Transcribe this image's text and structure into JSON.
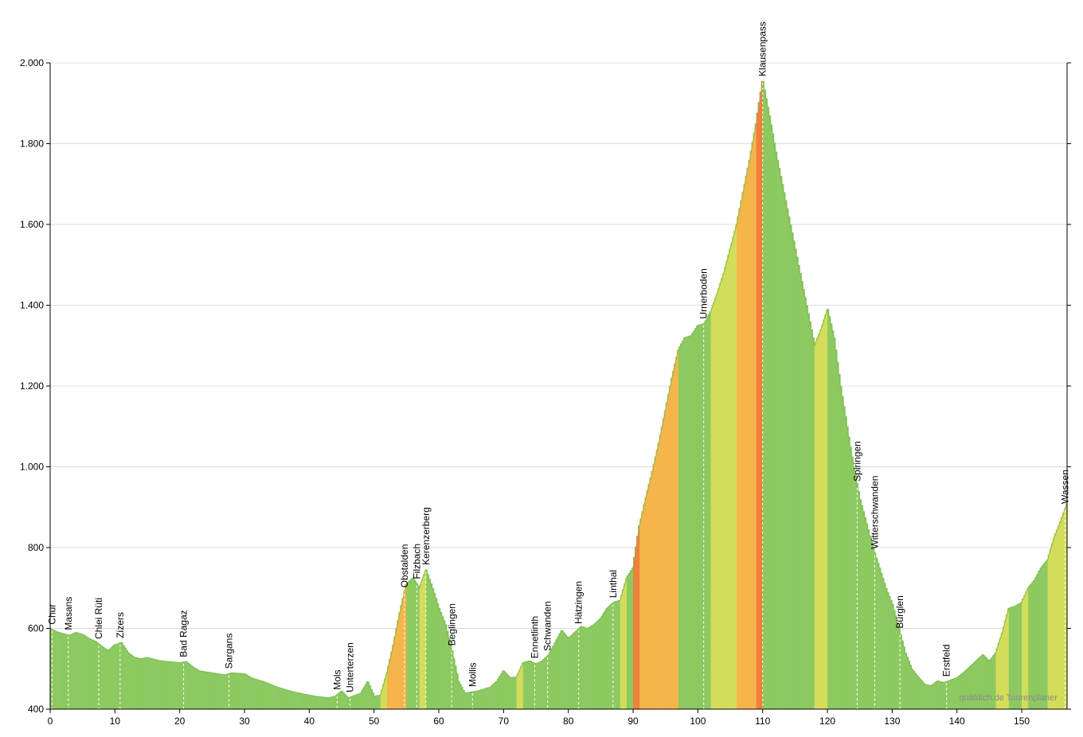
{
  "chart_data": {
    "type": "area",
    "title": "",
    "xlabel": "",
    "ylabel": "",
    "xlim": [
      0,
      157
    ],
    "ylim": [
      400,
      2000
    ],
    "x_ticks": [
      0,
      10,
      20,
      30,
      40,
      50,
      60,
      70,
      80,
      90,
      100,
      110,
      120,
      130,
      140,
      150
    ],
    "x_tick_labels": [
      "0",
      "10",
      "20",
      "30",
      "40",
      "50",
      "60",
      "70",
      "80",
      "90",
      "100",
      "110",
      "120",
      "130",
      "140",
      "150"
    ],
    "y_ticks": [
      400,
      600,
      800,
      1000,
      1200,
      1400,
      1600,
      1800,
      2000
    ],
    "y_tick_labels": [
      "400",
      "600",
      "800",
      "1.000",
      "1.200",
      "1.400",
      "1.600",
      "1.800",
      "2.000"
    ],
    "grid": true,
    "gradient_colors": {
      "flat": "#8dc961",
      "moderate": "#d3dd5a",
      "steep": "#f5b54b",
      "very_steep": "#f07f3c",
      "extreme": "#d34a2a"
    },
    "profile": [
      {
        "x": 0,
        "y": 600
      },
      {
        "x": 1,
        "y": 592
      },
      {
        "x": 2,
        "y": 587
      },
      {
        "x": 3,
        "y": 583
      },
      {
        "x": 4,
        "y": 590
      },
      {
        "x": 5,
        "y": 585
      },
      {
        "x": 6,
        "y": 575
      },
      {
        "x": 7,
        "y": 568
      },
      {
        "x": 8,
        "y": 555
      },
      {
        "x": 9,
        "y": 545
      },
      {
        "x": 10,
        "y": 560
      },
      {
        "x": 11,
        "y": 565
      },
      {
        "x": 12,
        "y": 540
      },
      {
        "x": 13,
        "y": 528
      },
      {
        "x": 14,
        "y": 525
      },
      {
        "x": 15,
        "y": 528
      },
      {
        "x": 17,
        "y": 520
      },
      {
        "x": 20,
        "y": 515
      },
      {
        "x": 21,
        "y": 518
      },
      {
        "x": 22,
        "y": 505
      },
      {
        "x": 23,
        "y": 495
      },
      {
        "x": 25,
        "y": 490
      },
      {
        "x": 27,
        "y": 485
      },
      {
        "x": 28,
        "y": 490
      },
      {
        "x": 30,
        "y": 488
      },
      {
        "x": 31,
        "y": 478
      },
      {
        "x": 33,
        "y": 468
      },
      {
        "x": 35,
        "y": 455
      },
      {
        "x": 37,
        "y": 445
      },
      {
        "x": 39,
        "y": 438
      },
      {
        "x": 41,
        "y": 432
      },
      {
        "x": 43,
        "y": 428
      },
      {
        "x": 44,
        "y": 432
      },
      {
        "x": 45,
        "y": 445
      },
      {
        "x": 46,
        "y": 428
      },
      {
        "x": 48,
        "y": 440
      },
      {
        "x": 49,
        "y": 468
      },
      {
        "x": 50,
        "y": 432
      },
      {
        "x": 51,
        "y": 435
      },
      {
        "x": 52,
        "y": 490
      },
      {
        "x": 53,
        "y": 560
      },
      {
        "x": 54,
        "y": 640
      },
      {
        "x": 55,
        "y": 710
      },
      {
        "x": 56,
        "y": 725
      },
      {
        "x": 57,
        "y": 700
      },
      {
        "x": 58,
        "y": 745
      },
      {
        "x": 59,
        "y": 700
      },
      {
        "x": 60,
        "y": 650
      },
      {
        "x": 61,
        "y": 610
      },
      {
        "x": 62,
        "y": 545
      },
      {
        "x": 63,
        "y": 470
      },
      {
        "x": 64,
        "y": 440
      },
      {
        "x": 66,
        "y": 445
      },
      {
        "x": 68,
        "y": 455
      },
      {
        "x": 69,
        "y": 470
      },
      {
        "x": 70,
        "y": 495
      },
      {
        "x": 71,
        "y": 478
      },
      {
        "x": 72,
        "y": 480
      },
      {
        "x": 73,
        "y": 515
      },
      {
        "x": 74,
        "y": 520
      },
      {
        "x": 75,
        "y": 512
      },
      {
        "x": 76,
        "y": 520
      },
      {
        "x": 77,
        "y": 535
      },
      {
        "x": 78,
        "y": 565
      },
      {
        "x": 79,
        "y": 595
      },
      {
        "x": 80,
        "y": 575
      },
      {
        "x": 81,
        "y": 590
      },
      {
        "x": 82,
        "y": 605
      },
      {
        "x": 83,
        "y": 600
      },
      {
        "x": 84,
        "y": 610
      },
      {
        "x": 85,
        "y": 625
      },
      {
        "x": 86,
        "y": 650
      },
      {
        "x": 87,
        "y": 665
      },
      {
        "x": 88,
        "y": 670
      },
      {
        "x": 89,
        "y": 725
      },
      {
        "x": 90,
        "y": 750
      },
      {
        "x": 91,
        "y": 855
      },
      {
        "x": 92,
        "y": 925
      },
      {
        "x": 93,
        "y": 990
      },
      {
        "x": 94,
        "y": 1060
      },
      {
        "x": 95,
        "y": 1140
      },
      {
        "x": 96,
        "y": 1220
      },
      {
        "x": 97,
        "y": 1290
      },
      {
        "x": 98,
        "y": 1320
      },
      {
        "x": 99,
        "y": 1325
      },
      {
        "x": 100,
        "y": 1350
      },
      {
        "x": 101,
        "y": 1355
      },
      {
        "x": 102,
        "y": 1385
      },
      {
        "x": 103,
        "y": 1430
      },
      {
        "x": 104,
        "y": 1480
      },
      {
        "x": 105,
        "y": 1540
      },
      {
        "x": 106,
        "y": 1600
      },
      {
        "x": 107,
        "y": 1680
      },
      {
        "x": 108,
        "y": 1760
      },
      {
        "x": 109,
        "y": 1850
      },
      {
        "x": 110,
        "y": 1955
      },
      {
        "x": 111,
        "y": 1870
      },
      {
        "x": 112,
        "y": 1780
      },
      {
        "x": 113,
        "y": 1700
      },
      {
        "x": 114,
        "y": 1620
      },
      {
        "x": 115,
        "y": 1540
      },
      {
        "x": 116,
        "y": 1460
      },
      {
        "x": 117,
        "y": 1380
      },
      {
        "x": 118,
        "y": 1300
      },
      {
        "x": 119,
        "y": 1340
      },
      {
        "x": 120,
        "y": 1390
      },
      {
        "x": 121,
        "y": 1320
      },
      {
        "x": 122,
        "y": 1200
      },
      {
        "x": 123,
        "y": 1100
      },
      {
        "x": 124,
        "y": 1000
      },
      {
        "x": 125,
        "y": 920
      },
      {
        "x": 126,
        "y": 860
      },
      {
        "x": 127,
        "y": 800
      },
      {
        "x": 128,
        "y": 750
      },
      {
        "x": 129,
        "y": 700
      },
      {
        "x": 130,
        "y": 660
      },
      {
        "x": 131,
        "y": 600
      },
      {
        "x": 132,
        "y": 540
      },
      {
        "x": 133,
        "y": 500
      },
      {
        "x": 134,
        "y": 480
      },
      {
        "x": 135,
        "y": 462
      },
      {
        "x": 136,
        "y": 458
      },
      {
        "x": 137,
        "y": 470
      },
      {
        "x": 138,
        "y": 466
      },
      {
        "x": 139,
        "y": 472
      },
      {
        "x": 140,
        "y": 478
      },
      {
        "x": 141,
        "y": 490
      },
      {
        "x": 142,
        "y": 505
      },
      {
        "x": 143,
        "y": 520
      },
      {
        "x": 144,
        "y": 535
      },
      {
        "x": 145,
        "y": 518
      },
      {
        "x": 146,
        "y": 540
      },
      {
        "x": 147,
        "y": 590
      },
      {
        "x": 148,
        "y": 650
      },
      {
        "x": 149,
        "y": 655
      },
      {
        "x": 150,
        "y": 665
      },
      {
        "x": 151,
        "y": 700
      },
      {
        "x": 152,
        "y": 720
      },
      {
        "x": 153,
        "y": 750
      },
      {
        "x": 154,
        "y": 770
      },
      {
        "x": 155,
        "y": 825
      },
      {
        "x": 156,
        "y": 865
      },
      {
        "x": 157,
        "y": 910
      }
    ],
    "places": [
      {
        "name": "Chur",
        "km": 0.3
      },
      {
        "name": "Masans",
        "km": 2.8
      },
      {
        "name": "Chlei Rüti",
        "km": 7.5
      },
      {
        "name": "Zizers",
        "km": 10.8
      },
      {
        "name": "Bad Ragaz",
        "km": 20.6
      },
      {
        "name": "Sargans",
        "km": 27.6
      },
      {
        "name": "Mols",
        "km": 44.3
      },
      {
        "name": "Unterterzen",
        "km": 46.3
      },
      {
        "name": "Obstalden",
        "km": 54.7
      },
      {
        "name": "Filzbach",
        "km": 56.6
      },
      {
        "name": "Kerenzerberg",
        "km": 58.0
      },
      {
        "name": "Beglingen",
        "km": 62.0
      },
      {
        "name": "Mollis",
        "km": 65.2
      },
      {
        "name": "Ennetlinth",
        "km": 74.8
      },
      {
        "name": "Schwanden",
        "km": 76.8
      },
      {
        "name": "Hätzingen",
        "km": 81.6
      },
      {
        "name": "Linthal",
        "km": 86.9
      },
      {
        "name": "Urnerboden",
        "km": 100.9
      },
      {
        "name": "Klausenpass",
        "km": 110.0
      },
      {
        "name": "Spiringen",
        "km": 124.6
      },
      {
        "name": "Witterschwanden",
        "km": 127.3
      },
      {
        "name": "Bürglen",
        "km": 131.2
      },
      {
        "name": "Erstfeld",
        "km": 138.4
      },
      {
        "name": "Wassen",
        "km": 156.7
      }
    ],
    "watermark": "quäldich.de Tourenplaner"
  }
}
